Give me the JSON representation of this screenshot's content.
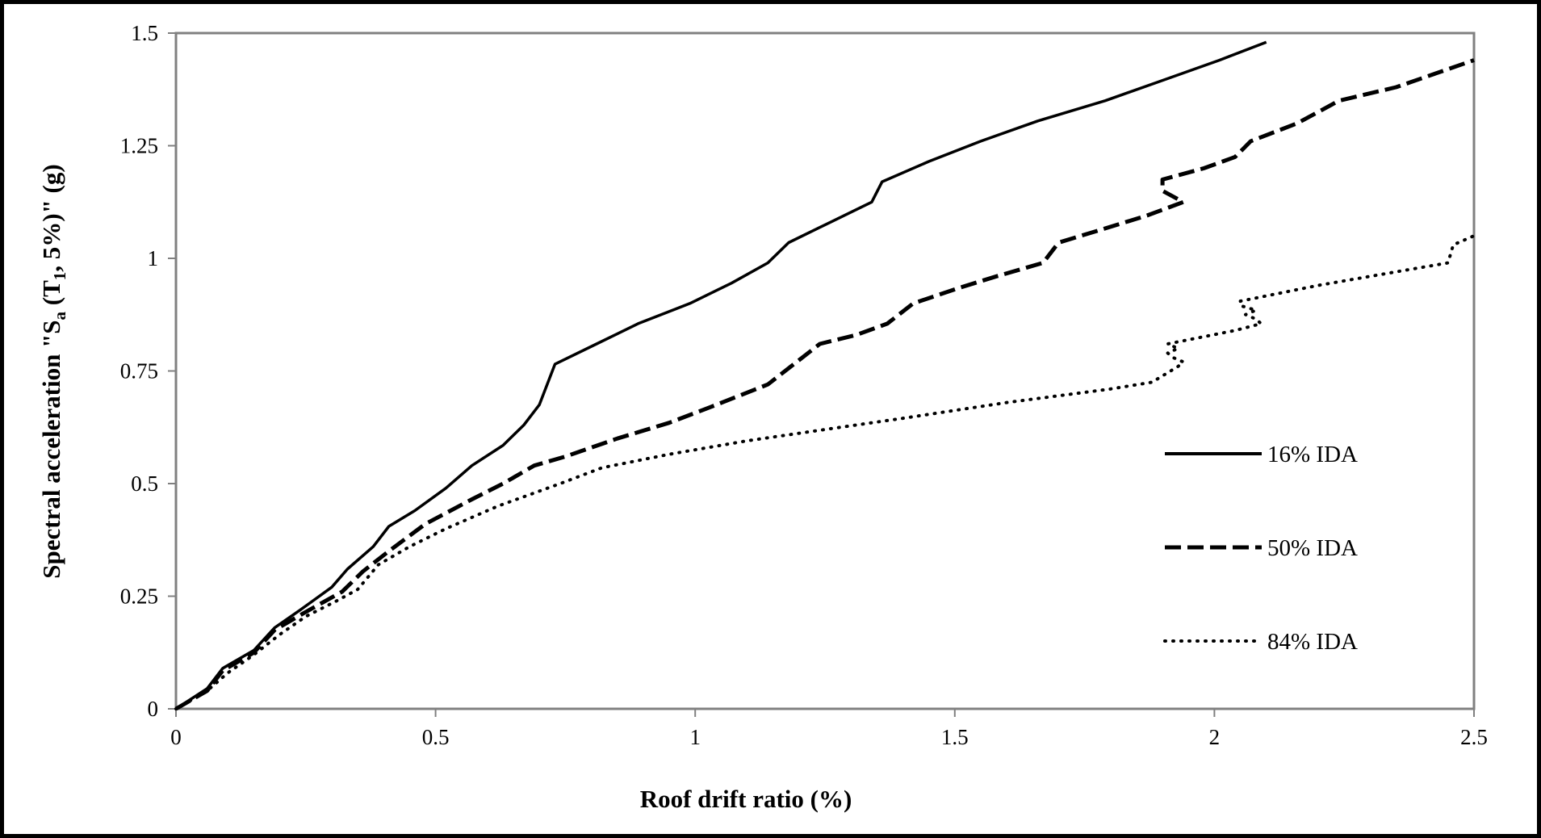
{
  "chart_data": {
    "type": "line",
    "xlabel": "Roof drift ratio (%)",
    "ylabel": {
      "prefix": "Spectral acceleration  \"S",
      "sub1": "a",
      "mid": " (T",
      "sub2": "1",
      "suffix": ", 5%)\"  (g)"
    },
    "xlim": [
      0,
      2.5
    ],
    "ylim": [
      0,
      1.5
    ],
    "xticks": [
      "0",
      "0.5",
      "1",
      "1.5",
      "2",
      "2.5"
    ],
    "yticks": [
      "0",
      "0.25",
      "0.5",
      "0.75",
      "1",
      "1.25",
      "1.5"
    ],
    "grid": false,
    "legend_position": "right",
    "series": [
      {
        "name": "16% IDA",
        "style": "solid",
        "points": [
          [
            0,
            0
          ],
          [
            0.06,
            0.045
          ],
          [
            0.09,
            0.09
          ],
          [
            0.15,
            0.13
          ],
          [
            0.19,
            0.18
          ],
          [
            0.24,
            0.22
          ],
          [
            0.3,
            0.27
          ],
          [
            0.33,
            0.31
          ],
          [
            0.38,
            0.36
          ],
          [
            0.41,
            0.405
          ],
          [
            0.46,
            0.44
          ],
          [
            0.52,
            0.49
          ],
          [
            0.57,
            0.54
          ],
          [
            0.63,
            0.585
          ],
          [
            0.67,
            0.63
          ],
          [
            0.7,
            0.675
          ],
          [
            0.73,
            0.765
          ],
          [
            0.81,
            0.81
          ],
          [
            0.89,
            0.855
          ],
          [
            0.99,
            0.9
          ],
          [
            1.07,
            0.945
          ],
          [
            1.14,
            0.99
          ],
          [
            1.18,
            1.035
          ],
          [
            1.26,
            1.08
          ],
          [
            1.34,
            1.125
          ],
          [
            1.36,
            1.17
          ],
          [
            1.45,
            1.215
          ],
          [
            1.55,
            1.26
          ],
          [
            1.66,
            1.305
          ],
          [
            1.79,
            1.35
          ],
          [
            1.9,
            1.395
          ],
          [
            2.01,
            1.44
          ],
          [
            2.1,
            1.48
          ],
          [
            2.16,
            1.51
          ]
        ]
      },
      {
        "name": "50% IDA",
        "style": "dashed",
        "points": [
          [
            0,
            0
          ],
          [
            0.06,
            0.04
          ],
          [
            0.09,
            0.085
          ],
          [
            0.15,
            0.125
          ],
          [
            0.19,
            0.175
          ],
          [
            0.25,
            0.215
          ],
          [
            0.32,
            0.26
          ],
          [
            0.36,
            0.305
          ],
          [
            0.41,
            0.35
          ],
          [
            0.48,
            0.41
          ],
          [
            0.57,
            0.465
          ],
          [
            0.63,
            0.5
          ],
          [
            0.69,
            0.54
          ],
          [
            0.75,
            0.56
          ],
          [
            0.85,
            0.6
          ],
          [
            0.95,
            0.635
          ],
          [
            1.03,
            0.67
          ],
          [
            1.14,
            0.72
          ],
          [
            1.19,
            0.765
          ],
          [
            1.24,
            0.81
          ],
          [
            1.31,
            0.83
          ],
          [
            1.37,
            0.855
          ],
          [
            1.42,
            0.9
          ],
          [
            1.51,
            0.935
          ],
          [
            1.58,
            0.96
          ],
          [
            1.67,
            0.99
          ],
          [
            1.7,
            1.035
          ],
          [
            1.8,
            1.07
          ],
          [
            1.87,
            1.095
          ],
          [
            1.94,
            1.125
          ],
          [
            1.9,
            1.15
          ],
          [
            1.9,
            1.175
          ],
          [
            1.98,
            1.2
          ],
          [
            2.04,
            1.225
          ],
          [
            2.07,
            1.26
          ],
          [
            2.16,
            1.3
          ],
          [
            2.24,
            1.35
          ],
          [
            2.35,
            1.38
          ],
          [
            2.5,
            1.44
          ]
        ]
      },
      {
        "name": "84% IDA",
        "style": "dotted",
        "points": [
          [
            0,
            0
          ],
          [
            0.06,
            0.04
          ],
          [
            0.1,
            0.08
          ],
          [
            0.15,
            0.12
          ],
          [
            0.2,
            0.165
          ],
          [
            0.25,
            0.205
          ],
          [
            0.31,
            0.24
          ],
          [
            0.35,
            0.265
          ],
          [
            0.39,
            0.32
          ],
          [
            0.45,
            0.36
          ],
          [
            0.52,
            0.4
          ],
          [
            0.62,
            0.45
          ],
          [
            0.74,
            0.5
          ],
          [
            0.82,
            0.535
          ],
          [
            0.95,
            0.565
          ],
          [
            1.1,
            0.595
          ],
          [
            1.25,
            0.62
          ],
          [
            1.4,
            0.645
          ],
          [
            1.6,
            0.68
          ],
          [
            1.8,
            0.71
          ],
          [
            1.88,
            0.725
          ],
          [
            1.93,
            0.76
          ],
          [
            1.94,
            0.77
          ],
          [
            1.92,
            0.78
          ],
          [
            1.91,
            0.79
          ],
          [
            1.93,
            0.8
          ],
          [
            1.91,
            0.81
          ],
          [
            2.04,
            0.84
          ],
          [
            2.09,
            0.855
          ],
          [
            2.08,
            0.865
          ],
          [
            2.06,
            0.875
          ],
          [
            2.08,
            0.885
          ],
          [
            2.05,
            0.895
          ],
          [
            2.05,
            0.905
          ],
          [
            2.2,
            0.94
          ],
          [
            2.35,
            0.97
          ],
          [
            2.45,
            0.99
          ],
          [
            2.46,
            1.03
          ],
          [
            2.5,
            1.05
          ]
        ]
      }
    ]
  }
}
